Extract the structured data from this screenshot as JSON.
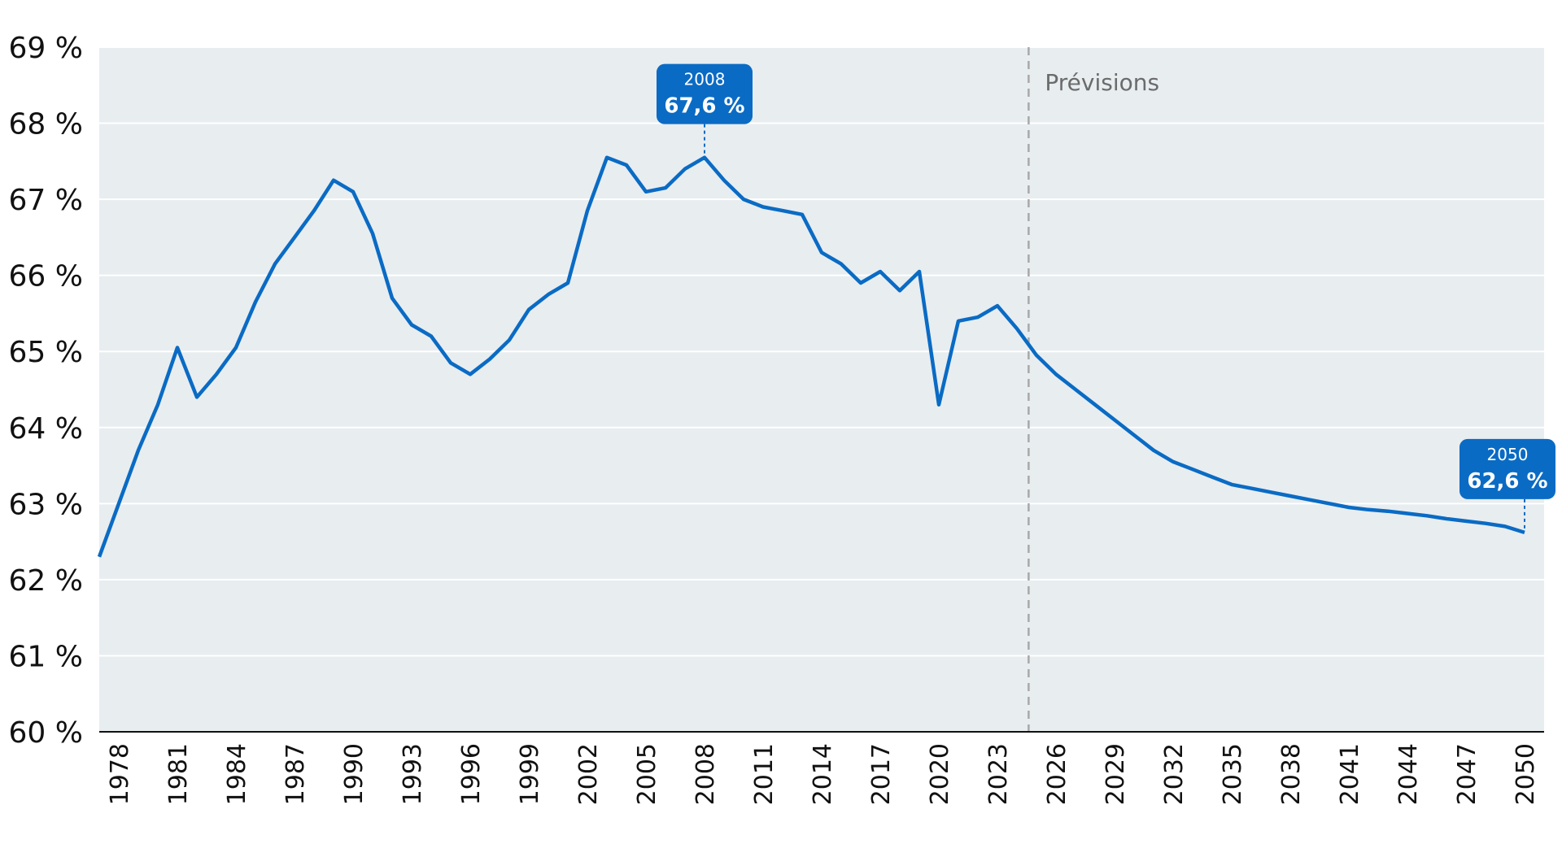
{
  "chart_data": {
    "type": "line",
    "title": "",
    "xlabel": "",
    "ylabel": "",
    "xlim": [
      1977,
      2051
    ],
    "ylim": [
      60,
      69
    ],
    "y_ticks": [
      "60 %",
      "61 %",
      "62 %",
      "63 %",
      "64 %",
      "65 %",
      "66 %",
      "67 %",
      "68 %",
      "69 %"
    ],
    "x_ticks": [
      1978,
      1981,
      1984,
      1987,
      1990,
      1993,
      1996,
      1999,
      2002,
      2005,
      2008,
      2011,
      2014,
      2017,
      2020,
      2023,
      2026,
      2029,
      2032,
      2035,
      2038,
      2041,
      2044,
      2047,
      2050
    ],
    "grid": true,
    "forecast_start": 2024.6,
    "forecast_label": "Prévisions",
    "series": [
      {
        "color": "#0a6bc4",
        "x": [
          1977,
          1978,
          1979,
          1980,
          1981,
          1982,
          1983,
          1984,
          1985,
          1986,
          1987,
          1988,
          1989,
          1990,
          1991,
          1992,
          1993,
          1994,
          1995,
          1996,
          1997,
          1998,
          1999,
          2000,
          2001,
          2002,
          2003,
          2004,
          2005,
          2006,
          2007,
          2008,
          2009,
          2010,
          2011,
          2012,
          2013,
          2014,
          2015,
          2016,
          2017,
          2018,
          2019,
          2020,
          2021,
          2022,
          2023,
          2024,
          2025,
          2026,
          2027,
          2028,
          2029,
          2030,
          2031,
          2032,
          2033,
          2034,
          2035,
          2036,
          2037,
          2038,
          2039,
          2040,
          2041,
          2042,
          2043,
          2044,
          2045,
          2046,
          2047,
          2048,
          2049,
          2050
        ],
        "y": [
          62.3,
          63.0,
          63.7,
          64.3,
          65.05,
          64.4,
          64.7,
          65.05,
          65.65,
          66.15,
          66.5,
          66.85,
          67.25,
          67.1,
          66.55,
          65.7,
          65.35,
          65.2,
          64.85,
          64.7,
          64.9,
          65.15,
          65.55,
          65.75,
          65.9,
          66.85,
          67.55,
          67.45,
          67.1,
          67.15,
          67.4,
          67.55,
          67.25,
          67.0,
          66.9,
          66.85,
          66.8,
          66.3,
          66.15,
          65.9,
          66.05,
          65.8,
          66.05,
          64.3,
          65.4,
          65.45,
          65.6,
          65.3,
          64.95,
          64.7,
          64.5,
          64.3,
          64.1,
          63.9,
          63.7,
          63.55,
          63.45,
          63.35,
          63.25,
          63.2,
          63.15,
          63.1,
          63.05,
          63.0,
          62.95,
          62.92,
          62.9,
          62.87,
          62.84,
          62.8,
          62.77,
          62.74,
          62.7,
          62.62
        ]
      }
    ],
    "annotations": [
      {
        "year": "2008",
        "label": "67,6 %",
        "x": 2008,
        "y": 67.55
      },
      {
        "year": "2050",
        "label": "62,6 %",
        "x": 2050,
        "y": 62.62
      }
    ],
    "colors": {
      "plot_bg": "#e8edf0",
      "line": "#0a6bc4",
      "gridline": "#ffffff",
      "forecast_line": "#a8a8a8",
      "annotation_bg": "#0a6bc4"
    }
  }
}
